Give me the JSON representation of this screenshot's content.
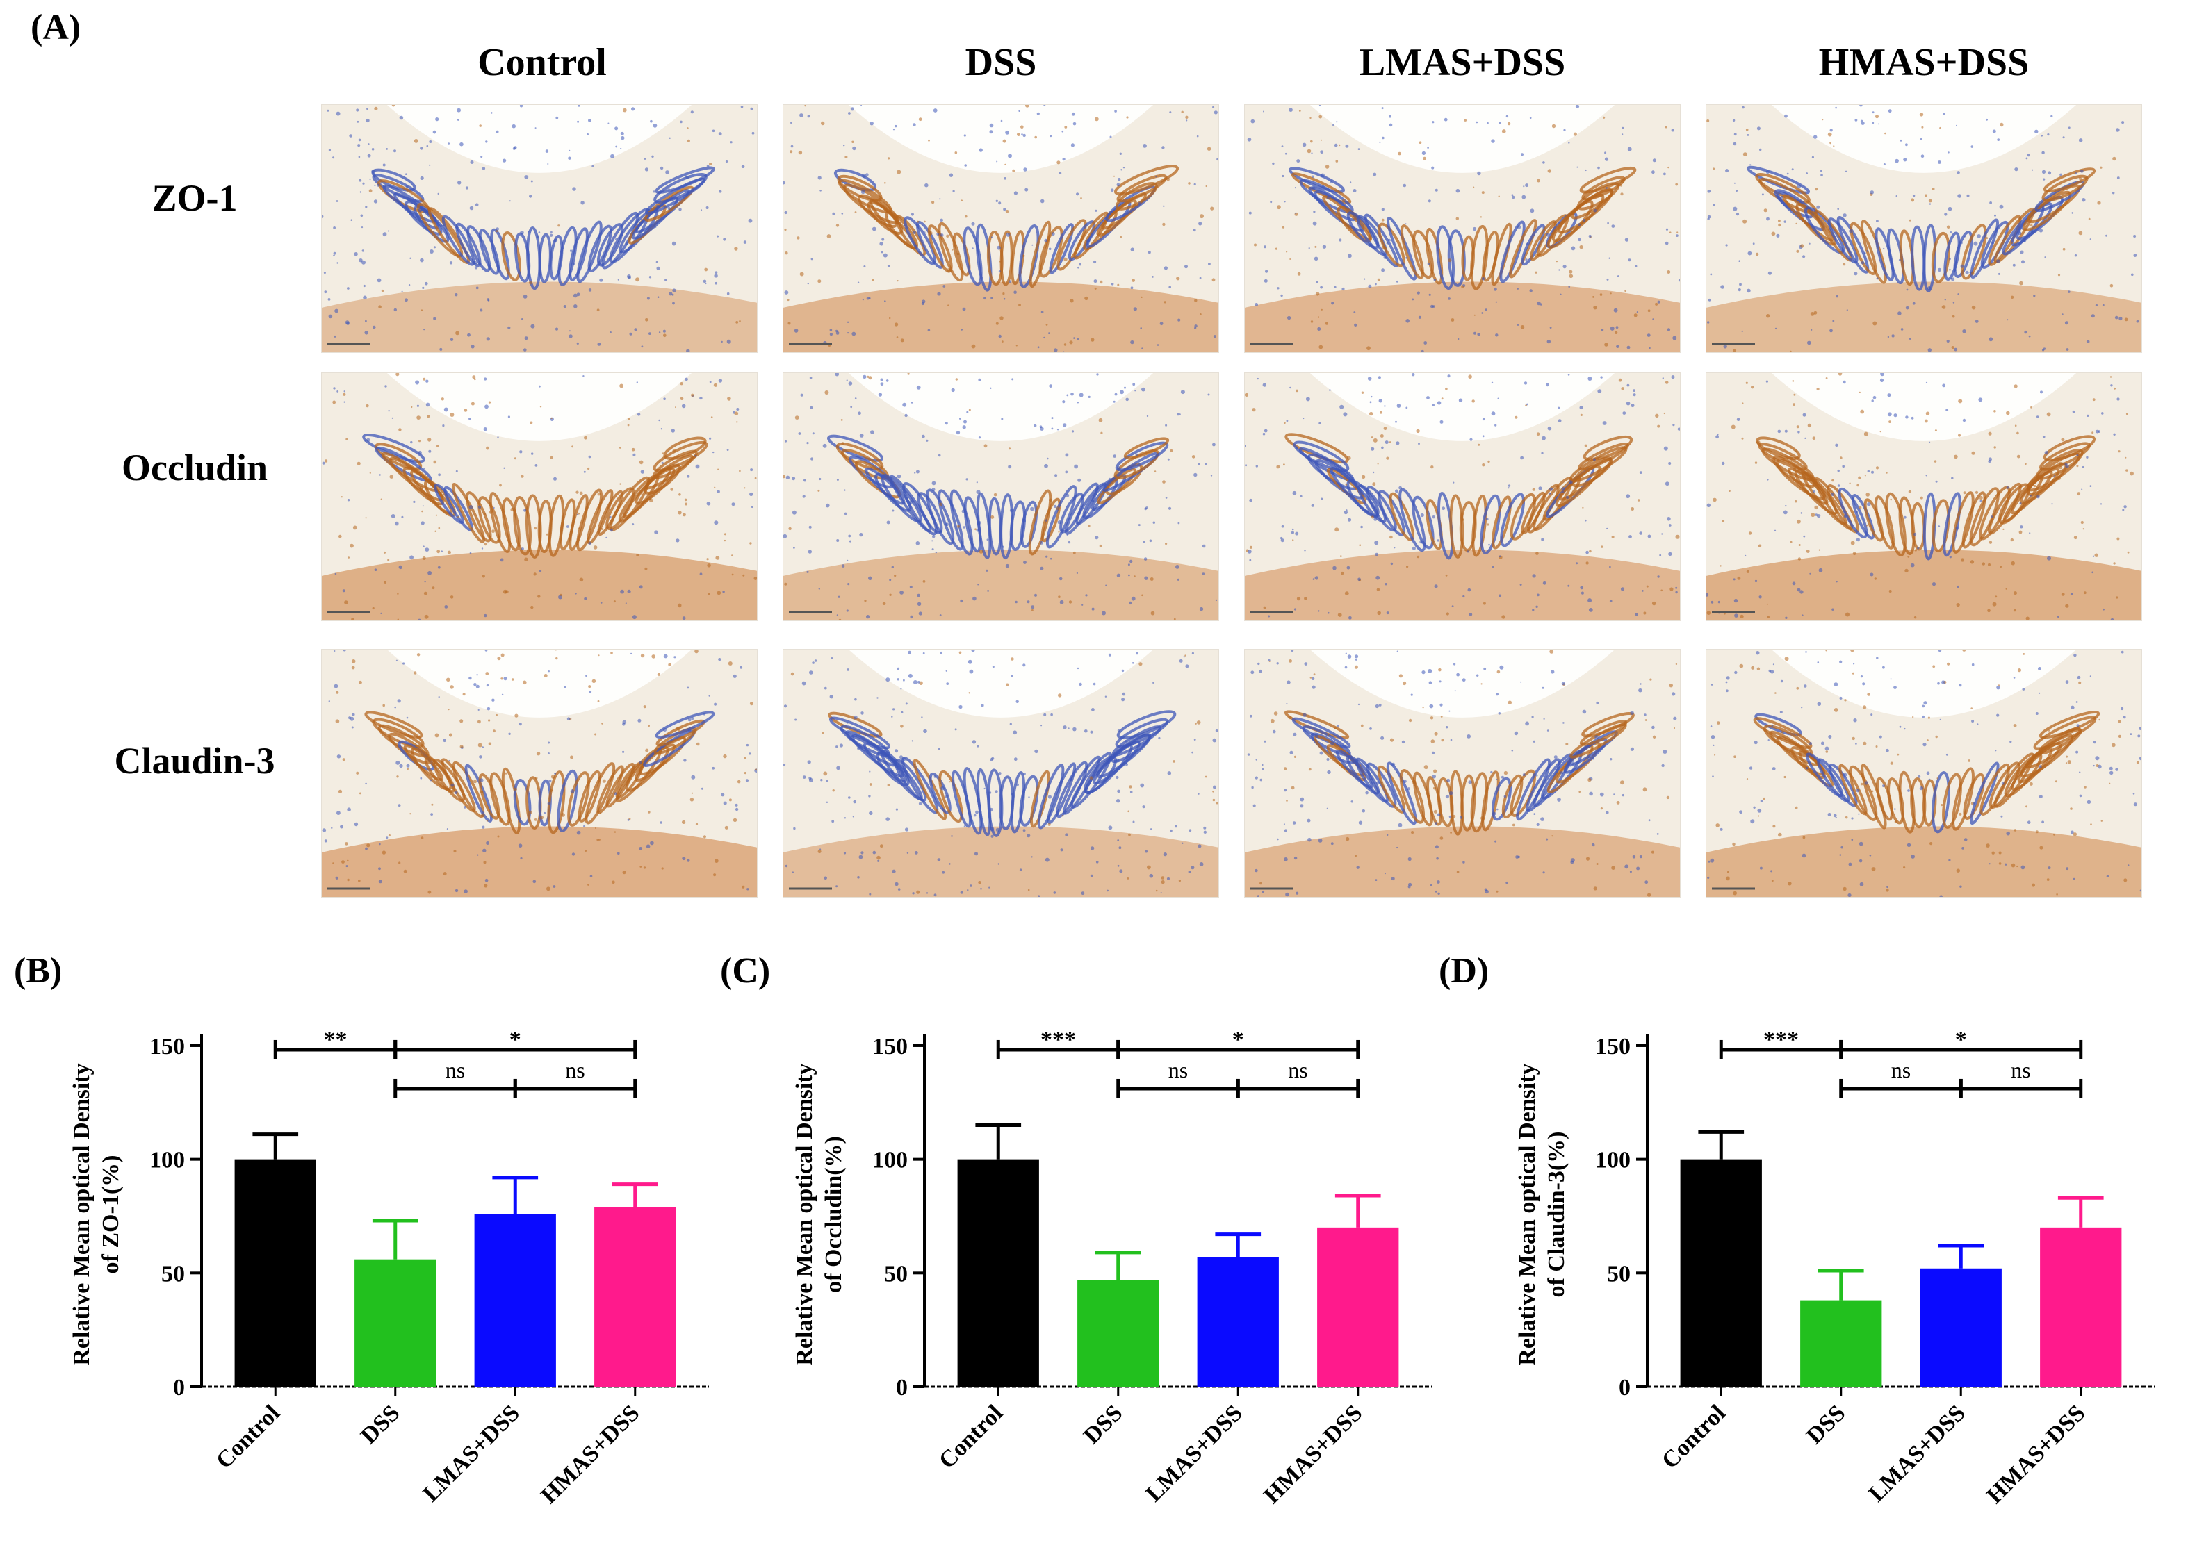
{
  "panel_a": {
    "label": "(A)",
    "columns": [
      "Control",
      "DSS",
      "LMAS+DSS",
      "HMAS+DSS"
    ],
    "rows": [
      "ZO-1",
      "Occludin",
      "Claudin-3"
    ],
    "stain_colors": {
      "hematoxylin": "#3d55b8",
      "dab": "#b5661e",
      "background": "#f3ede2"
    },
    "stain_intensity": [
      [
        0.15,
        0.6,
        0.55,
        0.35
      ],
      [
        0.85,
        0.35,
        0.55,
        0.85
      ],
      [
        0.8,
        0.25,
        0.5,
        0.7
      ]
    ]
  },
  "chart_data": [
    {
      "panel": "(B)",
      "type": "bar",
      "ylabel_line1": "Relative Mean optical Density",
      "ylabel_line2": "of ZO-1(%)",
      "categories": [
        "Control",
        "DSS",
        "LMAS+DSS",
        "HMAS+DSS"
      ],
      "values": [
        100,
        56,
        76,
        79
      ],
      "errors": [
        11,
        17,
        16,
        10
      ],
      "colors": [
        "#000000",
        "#22c01e",
        "#0a0aff",
        "#ff1a8c"
      ],
      "ylim": [
        0,
        150
      ],
      "yticks": [
        "0",
        "50",
        "100",
        "150"
      ],
      "comparisons": [
        {
          "from": 0,
          "to": 1,
          "label": "**",
          "level": 0
        },
        {
          "from": 1,
          "to": 3,
          "label": "*",
          "level": 0
        },
        {
          "from": 1,
          "to": 2,
          "label": "ns",
          "level": 1
        },
        {
          "from": 2,
          "to": 3,
          "label": "ns",
          "level": 1
        }
      ]
    },
    {
      "panel": "(C)",
      "type": "bar",
      "ylabel_line1": "Relative Mean optical Density",
      "ylabel_line2": "of Occludin(%)",
      "categories": [
        "Control",
        "DSS",
        "LMAS+DSS",
        "HMAS+DSS"
      ],
      "values": [
        100,
        47,
        57,
        70
      ],
      "errors": [
        15,
        12,
        10,
        14
      ],
      "colors": [
        "#000000",
        "#22c01e",
        "#0a0aff",
        "#ff1a8c"
      ],
      "ylim": [
        0,
        150
      ],
      "yticks": [
        "0",
        "50",
        "100",
        "150"
      ],
      "comparisons": [
        {
          "from": 0,
          "to": 1,
          "label": "***",
          "level": 0
        },
        {
          "from": 1,
          "to": 3,
          "label": "*",
          "level": 0
        },
        {
          "from": 1,
          "to": 2,
          "label": "ns",
          "level": 1
        },
        {
          "from": 2,
          "to": 3,
          "label": "ns",
          "level": 1
        }
      ]
    },
    {
      "panel": "(D)",
      "type": "bar",
      "ylabel_line1": "Relative Mean optical Density",
      "ylabel_line2": "of Claudin-3(%)",
      "categories": [
        "Control",
        "DSS",
        "LMAS+DSS",
        "HMAS+DSS"
      ],
      "values": [
        100,
        38,
        52,
        70
      ],
      "errors": [
        12,
        13,
        10,
        13
      ],
      "colors": [
        "#000000",
        "#22c01e",
        "#0a0aff",
        "#ff1a8c"
      ],
      "ylim": [
        0,
        150
      ],
      "yticks": [
        "0",
        "50",
        "100",
        "150"
      ],
      "comparisons": [
        {
          "from": 0,
          "to": 1,
          "label": "***",
          "level": 0
        },
        {
          "from": 1,
          "to": 3,
          "label": "*",
          "level": 0
        },
        {
          "from": 1,
          "to": 2,
          "label": "ns",
          "level": 1
        },
        {
          "from": 2,
          "to": 3,
          "label": "ns",
          "level": 1
        }
      ]
    }
  ]
}
